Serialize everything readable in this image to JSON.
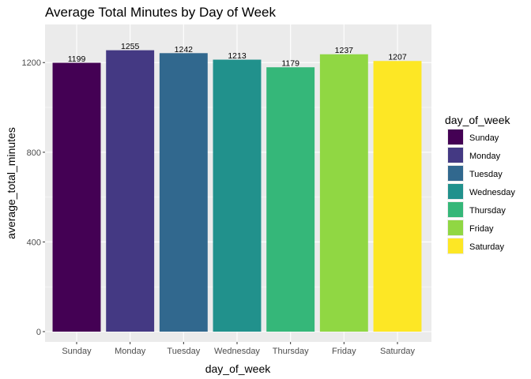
{
  "chart_data": {
    "type": "bar",
    "title": "Average Total Minutes by Day of Week",
    "xlabel": "day_of_week",
    "ylabel": "average_total_minutes",
    "categories": [
      "Sunday",
      "Monday",
      "Tuesday",
      "Wednesday",
      "Thursday",
      "Friday",
      "Saturday"
    ],
    "values": [
      1199,
      1255,
      1242,
      1213,
      1179,
      1237,
      1207
    ],
    "colors": [
      "#440154",
      "#443983",
      "#31688e",
      "#21918c",
      "#35b779",
      "#90d743",
      "#fde725"
    ],
    "ylim": [
      0,
      1310
    ],
    "yticks": [
      0,
      400,
      800,
      1200
    ],
    "grid": true,
    "legend": {
      "title": "day_of_week",
      "position": "right",
      "entries": [
        "Sunday",
        "Monday",
        "Tuesday",
        "Wednesday",
        "Thursday",
        "Friday",
        "Saturday"
      ]
    }
  }
}
